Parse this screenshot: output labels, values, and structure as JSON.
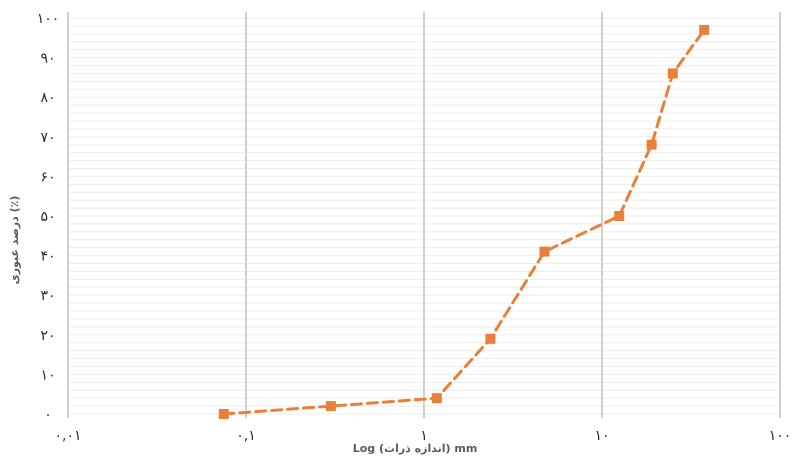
{
  "chart_data": {
    "type": "line",
    "xscale": "log",
    "xlim": [
      0.01,
      100
    ],
    "ylim": [
      0,
      100
    ],
    "grid": true,
    "xticks": [
      0.01,
      0.1,
      1,
      10,
      100
    ],
    "xtick_labels": [
      "۰,۰۱",
      "۰,۱",
      "۱",
      "۱۰",
      "۱۰۰"
    ],
    "yticks": [
      0,
      10,
      20,
      30,
      40,
      50,
      60,
      70,
      80,
      90,
      100
    ],
    "ytick_labels": [
      "۰",
      "۱۰",
      "۲۰",
      "۳۰",
      "۴۰",
      "۵۰",
      "۶۰",
      "۷۰",
      "۸۰",
      "۹۰",
      "۱۰۰"
    ],
    "xlabel": "Log (اندازه ذرات) mm",
    "ylabel": "درصد عبوری (٪)",
    "series": [
      {
        "x": [
          0.075,
          0.3,
          1.18,
          2.36,
          4.75,
          12.5,
          19,
          25,
          37.5
        ],
        "y": [
          0,
          2,
          4,
          19,
          41,
          50,
          68,
          86,
          97
        ]
      }
    ],
    "colors": {
      "series": "#e8803a",
      "grid_major": "#cfcfcf",
      "grid_minor": "#ececec"
    }
  }
}
